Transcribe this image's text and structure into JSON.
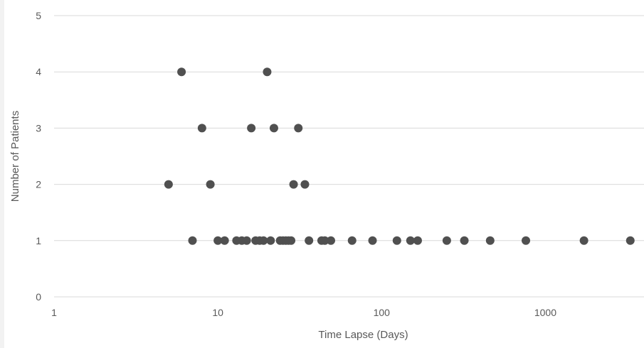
{
  "chart_data": {
    "type": "scatter",
    "title": "",
    "xlabel": "Time Lapse (Days)",
    "ylabel": "Number of Patients",
    "x_scale": "log",
    "xlim": [
      1,
      4000
    ],
    "ylim": [
      0,
      5
    ],
    "x_ticks": [
      1,
      10,
      100,
      1000
    ],
    "x_tick_labels": [
      "1",
      "10",
      "100",
      "1000"
    ],
    "y_ticks": [
      0,
      1,
      2,
      3,
      4,
      5
    ],
    "y_tick_labels": [
      "0",
      "1",
      "2",
      "3",
      "4",
      "5"
    ],
    "grid": "horizontal",
    "legend": "none",
    "point_color": "#505050",
    "points": [
      {
        "x": 5,
        "y": 2
      },
      {
        "x": 6,
        "y": 4
      },
      {
        "x": 7,
        "y": 1
      },
      {
        "x": 8,
        "y": 3
      },
      {
        "x": 9,
        "y": 2
      },
      {
        "x": 10,
        "y": 1
      },
      {
        "x": 11,
        "y": 1
      },
      {
        "x": 13,
        "y": 1
      },
      {
        "x": 14,
        "y": 1
      },
      {
        "x": 15,
        "y": 1
      },
      {
        "x": 16,
        "y": 3
      },
      {
        "x": 17,
        "y": 1
      },
      {
        "x": 18,
        "y": 1
      },
      {
        "x": 19,
        "y": 1
      },
      {
        "x": 20,
        "y": 4
      },
      {
        "x": 21,
        "y": 1
      },
      {
        "x": 22,
        "y": 3
      },
      {
        "x": 24,
        "y": 1
      },
      {
        "x": 25,
        "y": 1
      },
      {
        "x": 26,
        "y": 1
      },
      {
        "x": 27,
        "y": 1
      },
      {
        "x": 28,
        "y": 1
      },
      {
        "x": 29,
        "y": 2
      },
      {
        "x": 31,
        "y": 3
      },
      {
        "x": 34,
        "y": 2
      },
      {
        "x": 36,
        "y": 1
      },
      {
        "x": 43,
        "y": 1
      },
      {
        "x": 45,
        "y": 1
      },
      {
        "x": 49,
        "y": 1
      },
      {
        "x": 66,
        "y": 1
      },
      {
        "x": 88,
        "y": 1
      },
      {
        "x": 124,
        "y": 1
      },
      {
        "x": 150,
        "y": 1
      },
      {
        "x": 166,
        "y": 1
      },
      {
        "x": 250,
        "y": 1
      },
      {
        "x": 320,
        "y": 1
      },
      {
        "x": 460,
        "y": 1
      },
      {
        "x": 760,
        "y": 1
      },
      {
        "x": 1720,
        "y": 1
      },
      {
        "x": 3300,
        "y": 1
      }
    ]
  }
}
